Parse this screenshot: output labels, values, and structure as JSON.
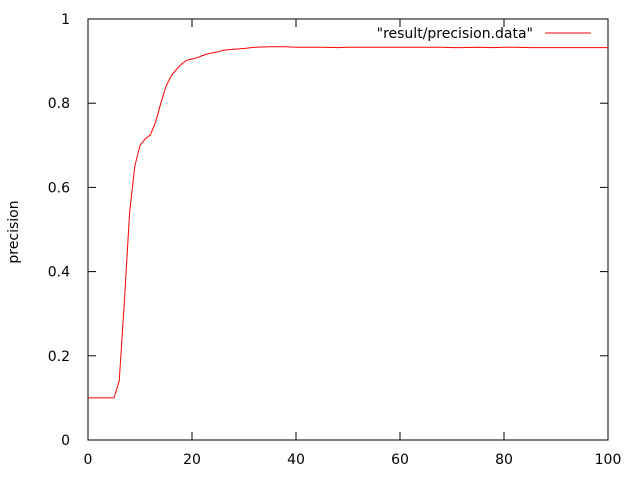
{
  "chart_data": {
    "type": "line",
    "title": "",
    "xlabel": "",
    "ylabel": "precision",
    "xlim": [
      0,
      100
    ],
    "ylim": [
      0,
      1
    ],
    "xticks": [
      0,
      20,
      40,
      60,
      80,
      100
    ],
    "xtick_labels": [
      "0",
      "20",
      "40",
      "60",
      "80",
      "100"
    ],
    "yticks": [
      0,
      0.2,
      0.4,
      0.6,
      0.8,
      1
    ],
    "ytick_labels": [
      "0",
      "0.2",
      "0.4",
      "0.6",
      "0.8",
      "1"
    ],
    "grid": false,
    "legend_position": "top-right",
    "series": [
      {
        "name": "\"result/precision.data\"",
        "color": "#ff0000",
        "x": [
          0,
          5,
          6,
          7,
          8,
          9,
          10,
          11,
          12,
          13,
          14,
          15,
          16,
          17,
          18,
          19,
          20,
          21,
          22,
          23,
          24,
          25,
          26,
          27,
          28,
          30,
          32,
          35,
          38,
          40,
          45,
          48,
          50,
          55,
          60,
          65,
          68,
          70,
          72,
          75,
          78,
          80,
          82,
          85,
          90,
          95,
          100
        ],
        "y": [
          0.1,
          0.1,
          0.14,
          0.33,
          0.54,
          0.65,
          0.7,
          0.715,
          0.725,
          0.755,
          0.8,
          0.84,
          0.865,
          0.88,
          0.893,
          0.902,
          0.905,
          0.908,
          0.913,
          0.917,
          0.92,
          0.922,
          0.926,
          0.927,
          0.928,
          0.93,
          0.933,
          0.934,
          0.934,
          0.933,
          0.933,
          0.932,
          0.933,
          0.933,
          0.933,
          0.933,
          0.933,
          0.932,
          0.932,
          0.933,
          0.932,
          0.933,
          0.933,
          0.932,
          0.932,
          0.932,
          0.932
        ]
      }
    ]
  }
}
